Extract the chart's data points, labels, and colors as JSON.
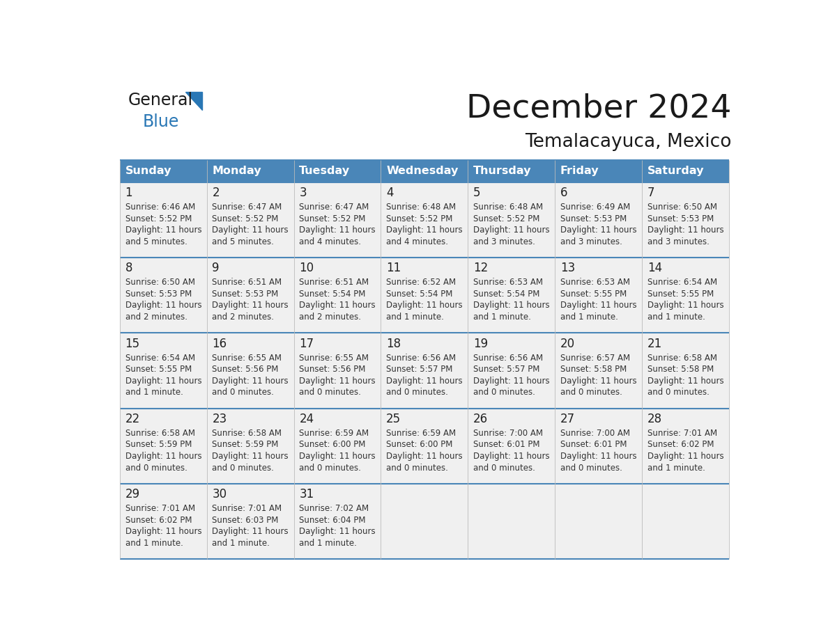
{
  "title": "December 2024",
  "subtitle": "Temalacayuca, Mexico",
  "header_bg_color": "#4A86B8",
  "header_text_color": "#FFFFFF",
  "cell_bg_color": "#F0F0F0",
  "border_color": "#4A86B8",
  "days_of_week": [
    "Sunday",
    "Monday",
    "Tuesday",
    "Wednesday",
    "Thursday",
    "Friday",
    "Saturday"
  ],
  "weeks": [
    [
      {
        "day": 1,
        "sunrise": "6:46 AM",
        "sunset": "5:52 PM",
        "daylight_line1": "Daylight: 11 hours",
        "daylight_line2": "and 5 minutes."
      },
      {
        "day": 2,
        "sunrise": "6:47 AM",
        "sunset": "5:52 PM",
        "daylight_line1": "Daylight: 11 hours",
        "daylight_line2": "and 5 minutes."
      },
      {
        "day": 3,
        "sunrise": "6:47 AM",
        "sunset": "5:52 PM",
        "daylight_line1": "Daylight: 11 hours",
        "daylight_line2": "and 4 minutes."
      },
      {
        "day": 4,
        "sunrise": "6:48 AM",
        "sunset": "5:52 PM",
        "daylight_line1": "Daylight: 11 hours",
        "daylight_line2": "and 4 minutes."
      },
      {
        "day": 5,
        "sunrise": "6:48 AM",
        "sunset": "5:52 PM",
        "daylight_line1": "Daylight: 11 hours",
        "daylight_line2": "and 3 minutes."
      },
      {
        "day": 6,
        "sunrise": "6:49 AM",
        "sunset": "5:53 PM",
        "daylight_line1": "Daylight: 11 hours",
        "daylight_line2": "and 3 minutes."
      },
      {
        "day": 7,
        "sunrise": "6:50 AM",
        "sunset": "5:53 PM",
        "daylight_line1": "Daylight: 11 hours",
        "daylight_line2": "and 3 minutes."
      }
    ],
    [
      {
        "day": 8,
        "sunrise": "6:50 AM",
        "sunset": "5:53 PM",
        "daylight_line1": "Daylight: 11 hours",
        "daylight_line2": "and 2 minutes."
      },
      {
        "day": 9,
        "sunrise": "6:51 AM",
        "sunset": "5:53 PM",
        "daylight_line1": "Daylight: 11 hours",
        "daylight_line2": "and 2 minutes."
      },
      {
        "day": 10,
        "sunrise": "6:51 AM",
        "sunset": "5:54 PM",
        "daylight_line1": "Daylight: 11 hours",
        "daylight_line2": "and 2 minutes."
      },
      {
        "day": 11,
        "sunrise": "6:52 AM",
        "sunset": "5:54 PM",
        "daylight_line1": "Daylight: 11 hours",
        "daylight_line2": "and 1 minute."
      },
      {
        "day": 12,
        "sunrise": "6:53 AM",
        "sunset": "5:54 PM",
        "daylight_line1": "Daylight: 11 hours",
        "daylight_line2": "and 1 minute."
      },
      {
        "day": 13,
        "sunrise": "6:53 AM",
        "sunset": "5:55 PM",
        "daylight_line1": "Daylight: 11 hours",
        "daylight_line2": "and 1 minute."
      },
      {
        "day": 14,
        "sunrise": "6:54 AM",
        "sunset": "5:55 PM",
        "daylight_line1": "Daylight: 11 hours",
        "daylight_line2": "and 1 minute."
      }
    ],
    [
      {
        "day": 15,
        "sunrise": "6:54 AM",
        "sunset": "5:55 PM",
        "daylight_line1": "Daylight: 11 hours",
        "daylight_line2": "and 1 minute."
      },
      {
        "day": 16,
        "sunrise": "6:55 AM",
        "sunset": "5:56 PM",
        "daylight_line1": "Daylight: 11 hours",
        "daylight_line2": "and 0 minutes."
      },
      {
        "day": 17,
        "sunrise": "6:55 AM",
        "sunset": "5:56 PM",
        "daylight_line1": "Daylight: 11 hours",
        "daylight_line2": "and 0 minutes."
      },
      {
        "day": 18,
        "sunrise": "6:56 AM",
        "sunset": "5:57 PM",
        "daylight_line1": "Daylight: 11 hours",
        "daylight_line2": "and 0 minutes."
      },
      {
        "day": 19,
        "sunrise": "6:56 AM",
        "sunset": "5:57 PM",
        "daylight_line1": "Daylight: 11 hours",
        "daylight_line2": "and 0 minutes."
      },
      {
        "day": 20,
        "sunrise": "6:57 AM",
        "sunset": "5:58 PM",
        "daylight_line1": "Daylight: 11 hours",
        "daylight_line2": "and 0 minutes."
      },
      {
        "day": 21,
        "sunrise": "6:58 AM",
        "sunset": "5:58 PM",
        "daylight_line1": "Daylight: 11 hours",
        "daylight_line2": "and 0 minutes."
      }
    ],
    [
      {
        "day": 22,
        "sunrise": "6:58 AM",
        "sunset": "5:59 PM",
        "daylight_line1": "Daylight: 11 hours",
        "daylight_line2": "and 0 minutes."
      },
      {
        "day": 23,
        "sunrise": "6:58 AM",
        "sunset": "5:59 PM",
        "daylight_line1": "Daylight: 11 hours",
        "daylight_line2": "and 0 minutes."
      },
      {
        "day": 24,
        "sunrise": "6:59 AM",
        "sunset": "6:00 PM",
        "daylight_line1": "Daylight: 11 hours",
        "daylight_line2": "and 0 minutes."
      },
      {
        "day": 25,
        "sunrise": "6:59 AM",
        "sunset": "6:00 PM",
        "daylight_line1": "Daylight: 11 hours",
        "daylight_line2": "and 0 minutes."
      },
      {
        "day": 26,
        "sunrise": "7:00 AM",
        "sunset": "6:01 PM",
        "daylight_line1": "Daylight: 11 hours",
        "daylight_line2": "and 0 minutes."
      },
      {
        "day": 27,
        "sunrise": "7:00 AM",
        "sunset": "6:01 PM",
        "daylight_line1": "Daylight: 11 hours",
        "daylight_line2": "and 0 minutes."
      },
      {
        "day": 28,
        "sunrise": "7:01 AM",
        "sunset": "6:02 PM",
        "daylight_line1": "Daylight: 11 hours",
        "daylight_line2": "and 1 minute."
      }
    ],
    [
      {
        "day": 29,
        "sunrise": "7:01 AM",
        "sunset": "6:02 PM",
        "daylight_line1": "Daylight: 11 hours",
        "daylight_line2": "and 1 minute."
      },
      {
        "day": 30,
        "sunrise": "7:01 AM",
        "sunset": "6:03 PM",
        "daylight_line1": "Daylight: 11 hours",
        "daylight_line2": "and 1 minute."
      },
      {
        "day": 31,
        "sunrise": "7:02 AM",
        "sunset": "6:04 PM",
        "daylight_line1": "Daylight: 11 hours",
        "daylight_line2": "and 1 minute."
      },
      null,
      null,
      null,
      null
    ]
  ]
}
